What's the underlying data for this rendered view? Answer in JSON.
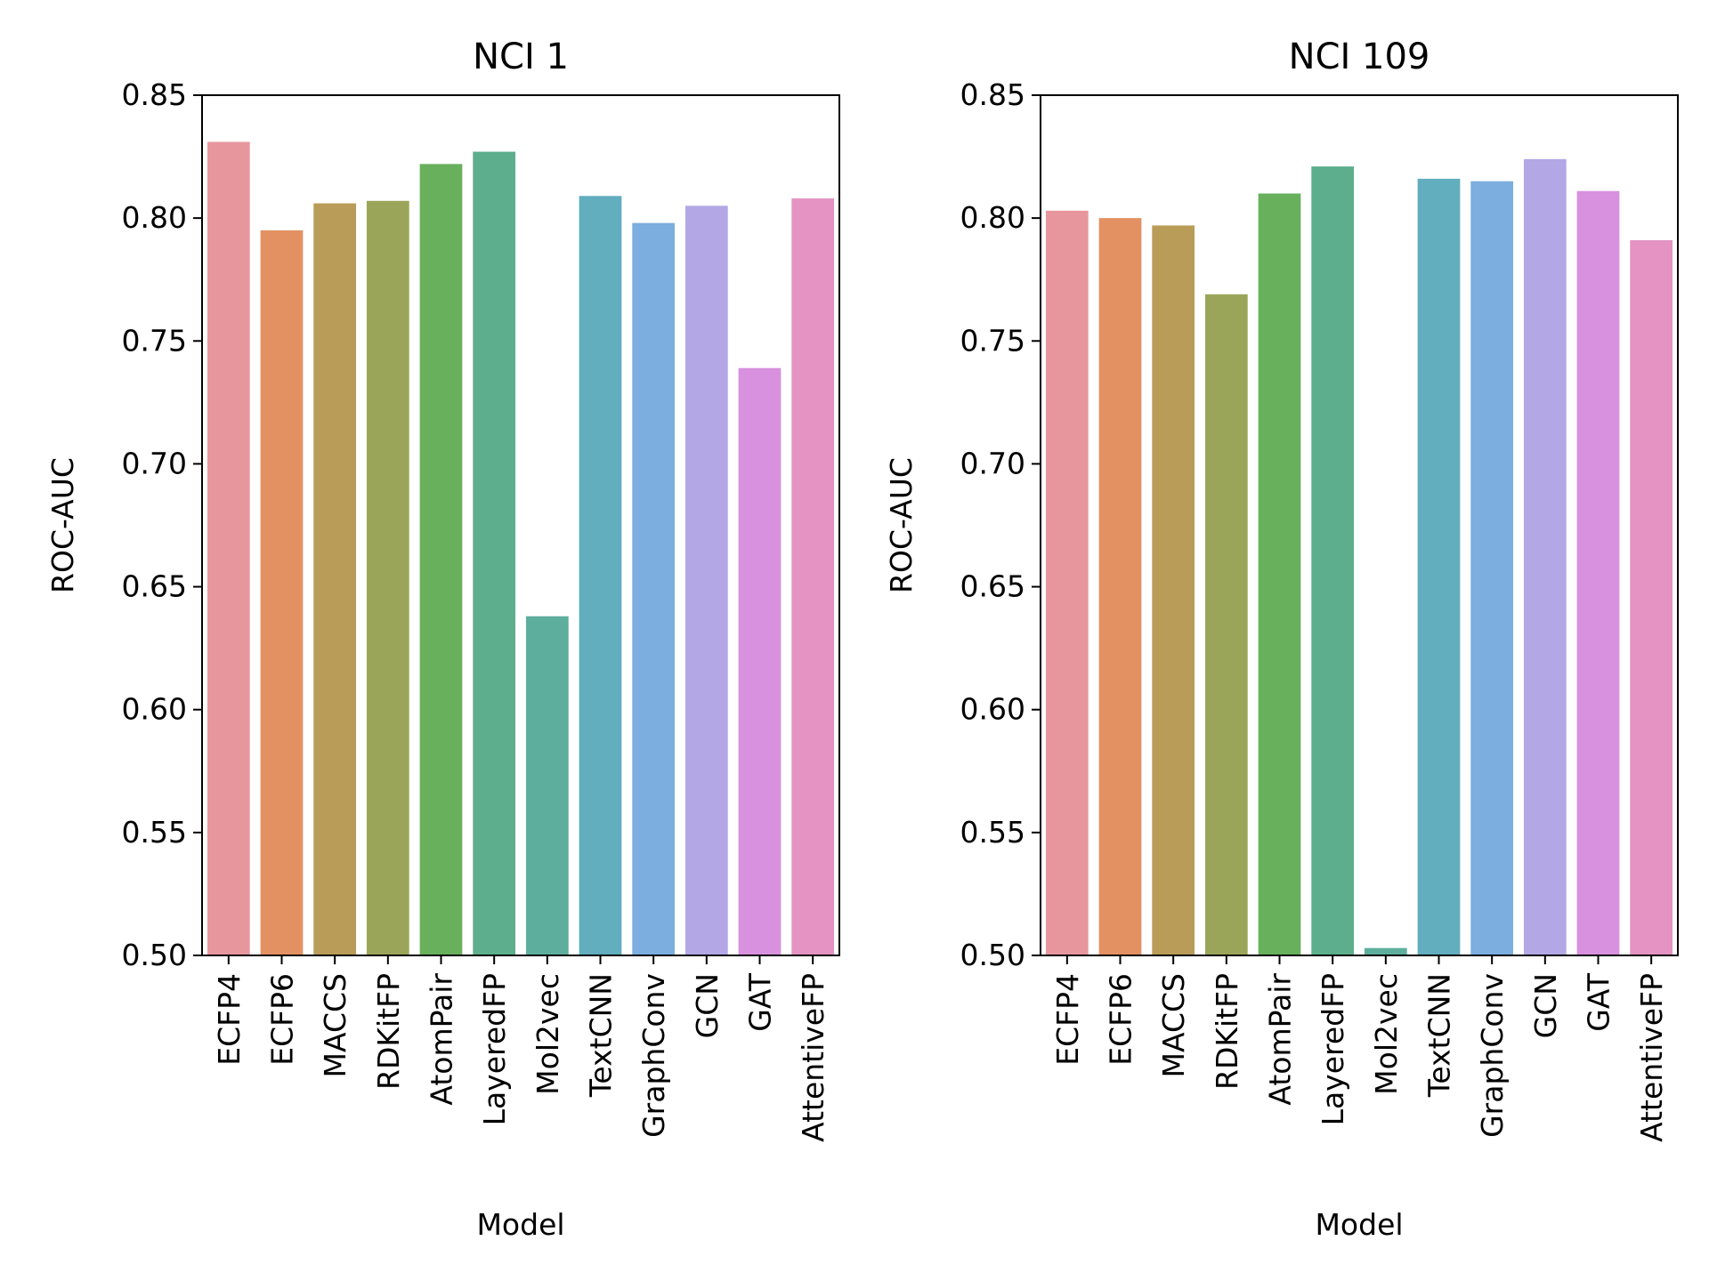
{
  "chart_data": [
    {
      "type": "bar",
      "title": "NCI 1",
      "xlabel": "Model",
      "ylabel": "ROC-AUC",
      "ylim": [
        0.5,
        0.85
      ],
      "yticks": [
        "0.50",
        "0.55",
        "0.60",
        "0.65",
        "0.70",
        "0.75",
        "0.80",
        "0.85"
      ],
      "categories": [
        "ECFP4",
        "ECFP6",
        "MACCS",
        "RDKitFP",
        "AtomPair",
        "LayeredFP",
        "Mol2vec",
        "TextCNN",
        "GraphConv",
        "GCN",
        "GAT",
        "AttentiveFP"
      ],
      "values": [
        0.831,
        0.795,
        0.806,
        0.807,
        0.822,
        0.827,
        0.638,
        0.809,
        0.798,
        0.805,
        0.739,
        0.808
      ],
      "colors": [
        "#e8969e",
        "#e39163",
        "#b99c58",
        "#9ba55a",
        "#69b05d",
        "#5cae8d",
        "#5eae9d",
        "#62adbe",
        "#7caedf",
        "#b3a8e5",
        "#d891de",
        "#e493c2"
      ],
      "grid": false,
      "legend": "none"
    },
    {
      "type": "bar",
      "title": "NCI 109",
      "xlabel": "Model",
      "ylabel": "ROC-AUC",
      "ylim": [
        0.5,
        0.85
      ],
      "yticks": [
        "0.50",
        "0.55",
        "0.60",
        "0.65",
        "0.70",
        "0.75",
        "0.80",
        "0.85"
      ],
      "categories": [
        "ECFP4",
        "ECFP6",
        "MACCS",
        "RDKitFP",
        "AtomPair",
        "LayeredFP",
        "Mol2vec",
        "TextCNN",
        "GraphConv",
        "GCN",
        "GAT",
        "AttentiveFP"
      ],
      "values": [
        0.803,
        0.8,
        0.797,
        0.769,
        0.81,
        0.821,
        0.503,
        0.816,
        0.815,
        0.824,
        0.811,
        0.791
      ],
      "colors": [
        "#e8969e",
        "#e39163",
        "#b99c58",
        "#9ba55a",
        "#69b05d",
        "#5cae8d",
        "#5eae9d",
        "#62adbe",
        "#7caedf",
        "#b3a8e5",
        "#d891de",
        "#e493c2"
      ],
      "grid": false,
      "legend": "none"
    }
  ]
}
